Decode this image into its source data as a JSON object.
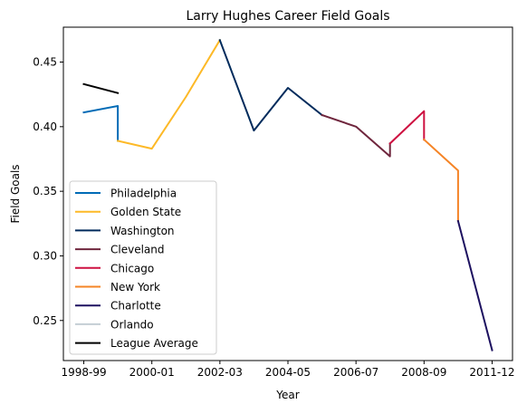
{
  "chart_data": {
    "type": "line",
    "title": "Larry Hughes Career Field Goals",
    "xlabel": "Year",
    "ylabel": "Field Goals",
    "x_ticks": [
      {
        "x": 0,
        "label": "1998-99"
      },
      {
        "x": 2,
        "label": "2000-01"
      },
      {
        "x": 4,
        "label": "2002-03"
      },
      {
        "x": 6,
        "label": "2004-05"
      },
      {
        "x": 8,
        "label": "2006-07"
      },
      {
        "x": 10,
        "label": "2008-09"
      },
      {
        "x": 12,
        "label": "2011-12"
      }
    ],
    "xlim": [
      -0.6,
      12.6
    ],
    "ylim": [
      0.219,
      0.477
    ],
    "y_ticks": [
      0.25,
      0.3,
      0.35,
      0.4,
      0.45
    ],
    "y_tick_labels": [
      "0.25",
      "0.30",
      "0.35",
      "0.40",
      "0.45"
    ],
    "grid": false,
    "legend_position": "lower-left",
    "series": [
      {
        "name": "Philadelphia",
        "color": "#006BB6",
        "x": [
          0,
          1,
          1
        ],
        "y": [
          0.411,
          0.416,
          0.389
        ]
      },
      {
        "name": "Golden State",
        "color": "#FDB927",
        "x": [
          1,
          2,
          3,
          4
        ],
        "y": [
          0.389,
          0.383,
          0.423,
          0.467
        ]
      },
      {
        "name": "Washington",
        "color": "#002B5C",
        "x": [
          4,
          5,
          6,
          7
        ],
        "y": [
          0.467,
          0.397,
          0.43,
          0.409
        ]
      },
      {
        "name": "Cleveland",
        "color": "#6F263D",
        "x": [
          7,
          8,
          9,
          9
        ],
        "y": [
          0.409,
          0.4,
          0.377,
          0.387
        ]
      },
      {
        "name": "Chicago",
        "color": "#CE1141",
        "x": [
          9,
          10,
          10
        ],
        "y": [
          0.387,
          0.412,
          0.39
        ]
      },
      {
        "name": "New York",
        "color": "#F58426",
        "x": [
          10,
          11,
          11
        ],
        "y": [
          0.39,
          0.366,
          0.327
        ]
      },
      {
        "name": "Charlotte",
        "color": "#1D1160",
        "x": [
          11,
          12
        ],
        "y": [
          0.327,
          0.227
        ]
      },
      {
        "name": "Orlando",
        "color": "#C4CED4",
        "x": [],
        "y": []
      },
      {
        "name": "League Average",
        "color": "#000000",
        "x": [
          0,
          1
        ],
        "y": [
          0.433,
          0.426
        ]
      }
    ]
  }
}
